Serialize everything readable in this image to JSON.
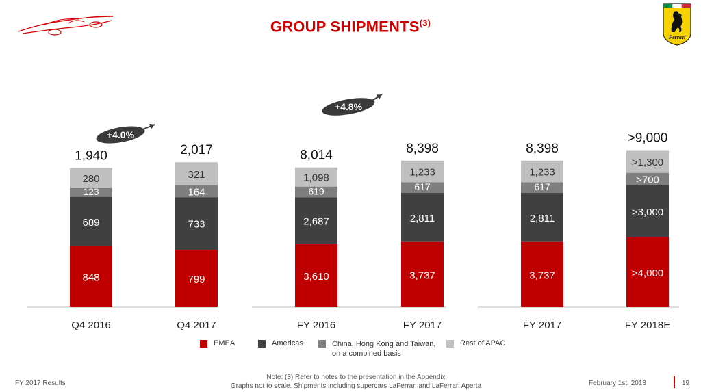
{
  "page": {
    "title": "GROUP SHIPMENTS",
    "title_note": "(3)",
    "footer_left": "FY 2017 Results",
    "footer_note_line1": "Note: (3) Refer to notes to the presentation in the Appendix",
    "footer_note_line2": "Graphs not to scale. Shipments including supercars LaFerrari and LaFerrari Aperta",
    "footer_date": "February 1st, 2018",
    "page_number": "19"
  },
  "colors": {
    "emea": "#c00000",
    "americas": "#404040",
    "china": "#7f7f7f",
    "apac": "#bfbfbf",
    "brand_red": "#d40000",
    "badge": "#3a3a3a"
  },
  "chart_data": {
    "type": "bar",
    "stacked": true,
    "categories": [
      "Q4 2016",
      "Q4 2017",
      "FY 2016",
      "FY 2017",
      "FY 2017",
      "FY 2018E"
    ],
    "series": [
      {
        "name": "EMEA",
        "values": [
          848,
          799,
          3610,
          3737,
          3737,
          4000
        ],
        "labels": [
          "848",
          "799",
          "3,610",
          "3,737",
          "3,737",
          ">4,000"
        ]
      },
      {
        "name": "Americas",
        "values": [
          689,
          733,
          2687,
          2811,
          2811,
          3000
        ],
        "labels": [
          "689",
          "733",
          "2,687",
          "2,811",
          "2,811",
          ">3,000"
        ]
      },
      {
        "name": "China, Hong Kong and Taiwan, on a combined basis",
        "values": [
          123,
          164,
          619,
          617,
          617,
          700
        ],
        "labels": [
          "123",
          "164",
          "619",
          "617",
          "617",
          ">700"
        ]
      },
      {
        "name": "Rest of APAC",
        "values": [
          280,
          321,
          1098,
          1233,
          1233,
          1300
        ],
        "labels": [
          "280",
          "321",
          "1,098",
          "1,233",
          "1,233",
          ">1,300"
        ]
      }
    ],
    "totals": [
      1940,
      2017,
      8014,
      8398,
      8398,
      9000
    ],
    "total_labels": [
      "1,940",
      "2,017",
      "8,014",
      "8,398",
      "8,398",
      ">9,000"
    ],
    "growth_labels": [
      {
        "text": "+4.0%",
        "from": "Q4 2016",
        "to": "Q4 2017"
      },
      {
        "text": "+4.8%",
        "from": "FY 2016",
        "to": "FY 2017"
      }
    ],
    "groups": [
      [
        "Q4 2016",
        "Q4 2017"
      ],
      [
        "FY 2016",
        "FY 2017"
      ],
      [
        "FY 2017",
        "FY 2018E"
      ]
    ],
    "legend_position": "bottom",
    "grid": false,
    "note": "Graphs not to scale"
  }
}
